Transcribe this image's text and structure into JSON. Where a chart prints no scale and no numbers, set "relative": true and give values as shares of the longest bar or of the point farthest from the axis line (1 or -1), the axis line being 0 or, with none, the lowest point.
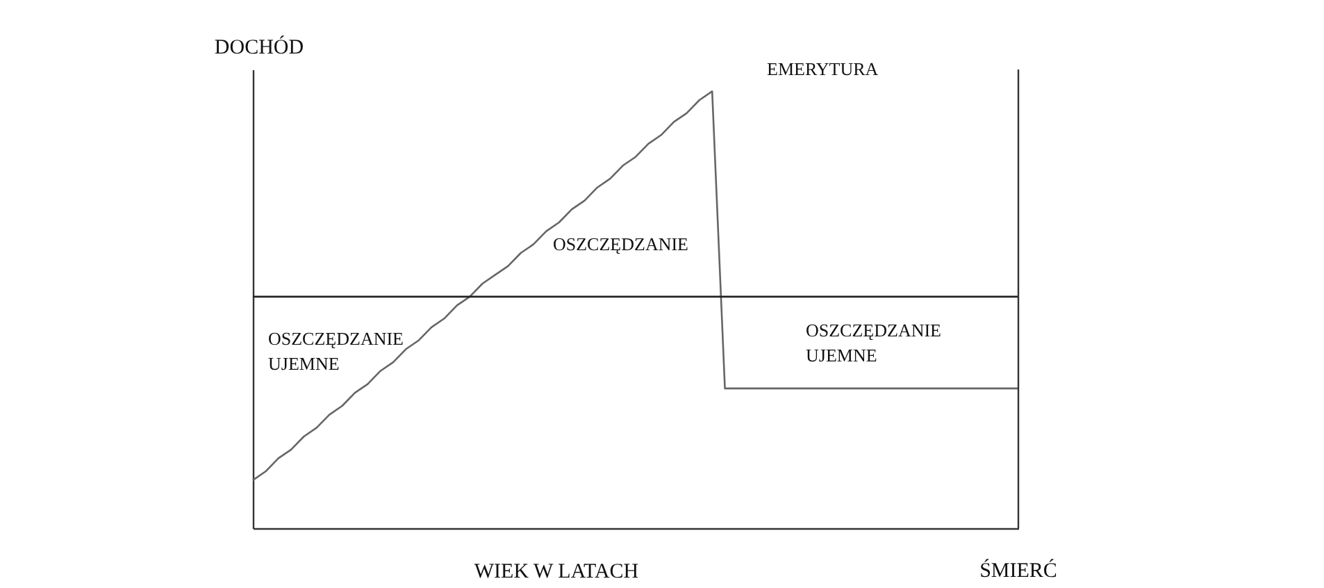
{
  "chart_data": {
    "type": "line",
    "relative": true,
    "xlabel": "WIEK W LATACH",
    "ylabel": "DOCHÓD",
    "tick_labels": false,
    "marker": "none",
    "categories": [
      null,
      null,
      null,
      null,
      null,
      null,
      null,
      null,
      null,
      null,
      null,
      null,
      null,
      null,
      null,
      null,
      null,
      null,
      null,
      null,
      null,
      null,
      null,
      null,
      null,
      null,
      null,
      null,
      null,
      null,
      null,
      null,
      null,
      null,
      null,
      null,
      null,
      null,
      null,
      null,
      null,
      null,
      null,
      null,
      null,
      null,
      null,
      null,
      null,
      null,
      null,
      null,
      null,
      null,
      null,
      null,
      null,
      null,
      null,
      null,
      null
    ],
    "series": [
      {
        "color": "#666666",
        "values": [
          0.11,
          0.13,
          0.16,
          0.18,
          0.21,
          0.23,
          0.26,
          0.28,
          0.31,
          0.33,
          0.36,
          0.38,
          0.41,
          0.43,
          0.46,
          0.48,
          0.51,
          0.53,
          0.56,
          0.58,
          0.6,
          0.63,
          0.65,
          0.68,
          0.7,
          0.73,
          0.75,
          0.78,
          0.8,
          0.83,
          0.85,
          0.88,
          0.9,
          0.93,
          0.95,
          0.98,
          1.0,
          0.32,
          0.32,
          0.32,
          0.32,
          0.32,
          0.32,
          0.32,
          0.32,
          0.32,
          0.32,
          0.32,
          0.32,
          0.32,
          0.32,
          0.32,
          0.32,
          0.32,
          0.32,
          0.32,
          0.32,
          0.32,
          0.32,
          0.32,
          0.32
        ]
      },
      {
        "color": "#222222",
        "values": [
          0.53,
          0.53,
          0.53,
          0.53,
          0.53,
          0.53,
          0.53,
          0.53,
          0.53,
          0.53,
          0.53,
          0.53,
          0.53,
          0.53,
          0.53,
          0.53,
          0.53,
          0.53,
          0.53,
          0.53,
          0.53,
          0.53,
          0.53,
          0.53,
          0.53,
          0.53,
          0.53,
          0.53,
          0.53,
          0.53,
          0.53,
          0.53,
          0.53,
          0.53,
          0.53,
          0.53,
          0.53,
          0.53,
          0.53,
          0.53,
          0.53,
          0.53,
          0.53,
          0.53,
          0.53,
          0.53,
          0.53,
          0.53,
          0.53,
          0.53,
          0.53,
          0.53,
          0.53,
          0.53,
          0.53,
          0.53,
          0.53,
          0.53,
          0.53,
          0.53,
          0.53
        ]
      }
    ],
    "annotations": [
      "EMERYTURA",
      "OSZCZĘDZANIE UJEMNE",
      "OSZCZĘDZANIE",
      "OSZCZĘDZANIE UJEMNE",
      "ŚMIERĆ"
    ]
  }
}
